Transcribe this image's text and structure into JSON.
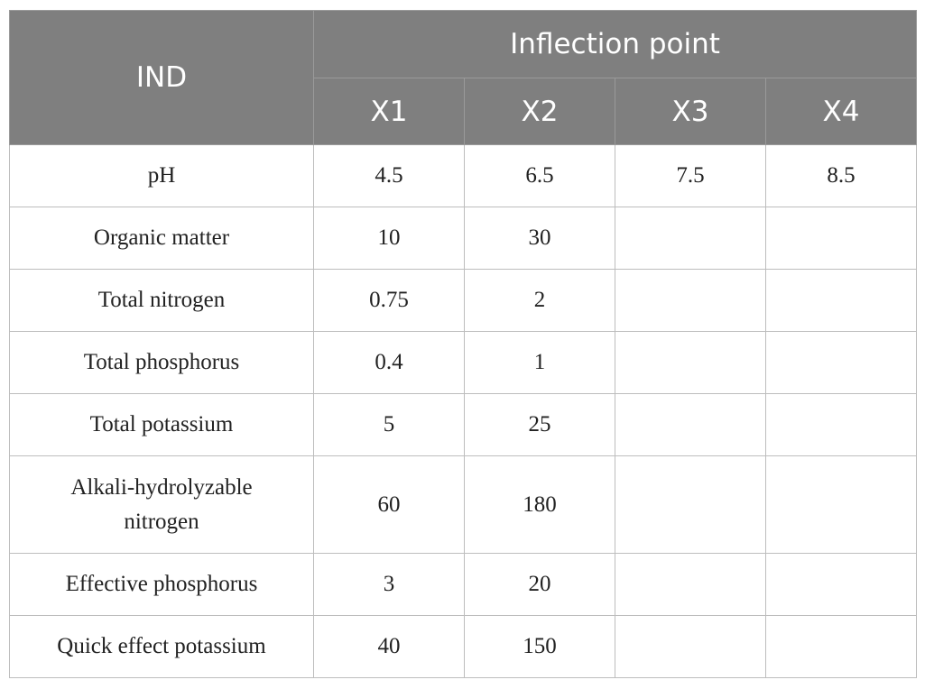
{
  "table": {
    "header": {
      "row_label": "IND",
      "group_label": "Inflection point",
      "columns": [
        "X1",
        "X2",
        "X3",
        "X4"
      ]
    },
    "rows": [
      {
        "label": "pH",
        "values": [
          "4.5",
          "6.5",
          "7.5",
          "8.5"
        ]
      },
      {
        "label": "Organic matter",
        "values": [
          "10",
          "30",
          "",
          ""
        ]
      },
      {
        "label": "Total nitrogen",
        "values": [
          "0.75",
          "2",
          "",
          ""
        ]
      },
      {
        "label": "Total phosphorus",
        "values": [
          "0.4",
          "1",
          "",
          ""
        ]
      },
      {
        "label": "Total potassium",
        "values": [
          "5",
          "25",
          "",
          ""
        ]
      },
      {
        "label": "Alkali-hydrolyzable nitrogen",
        "values": [
          "60",
          "180",
          "",
          ""
        ]
      },
      {
        "label": "Effective phosphorus",
        "values": [
          "3",
          "20",
          "",
          ""
        ]
      },
      {
        "label": "Quick effect potassium",
        "values": [
          "40",
          "150",
          "",
          ""
        ]
      }
    ]
  },
  "colors": {
    "header_background": "#7f7f7f",
    "header_text": "#ffffff",
    "grid_line": "#bdbdbd"
  }
}
